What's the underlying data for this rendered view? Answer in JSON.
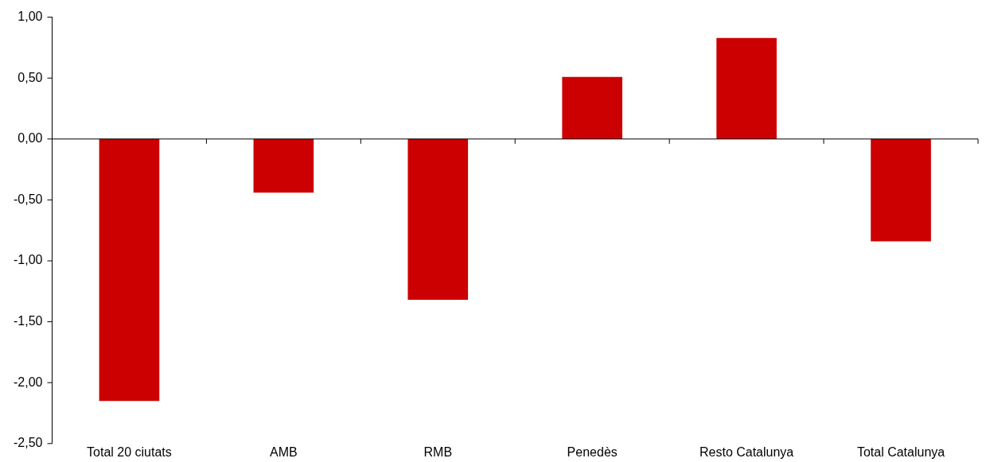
{
  "chart_data": {
    "type": "bar",
    "categories": [
      "Total 20 ciutats",
      "AMB",
      "RMB",
      "Penedès",
      "Resto Catalunya",
      "Total Catalunya"
    ],
    "values": [
      -2.15,
      -0.44,
      -1.32,
      0.51,
      0.83,
      -0.84
    ],
    "color": "#cc0000",
    "ylim": [
      -2.5,
      1
    ],
    "yticks": [
      {
        "value": -2.5,
        "label": "-2,50"
      },
      {
        "value": -2,
        "label": "-2,00"
      },
      {
        "value": -1.5,
        "label": "-1,50"
      },
      {
        "value": -1,
        "label": "-1,00"
      },
      {
        "value": -0.5,
        "label": "-0,50"
      },
      {
        "value": 0,
        "label": "0,00"
      },
      {
        "value": 0.5,
        "label": "0,50"
      },
      {
        "value": 1,
        "label": "1,00"
      }
    ],
    "ref_lines": [
      {
        "axis": "y",
        "value": 0,
        "color": "#000000"
      }
    ],
    "grid": false,
    "legend": false
  }
}
